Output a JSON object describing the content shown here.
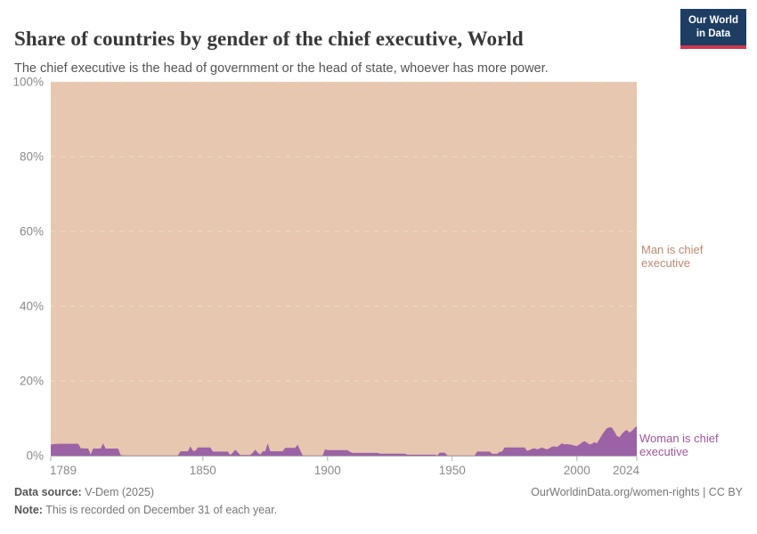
{
  "header": {
    "title": "Share of countries by gender of the chief executive, World",
    "subtitle": "The chief executive is the head of government or the head of state, whoever has more power.",
    "logo_line1": "Our World",
    "logo_line2": "in Data"
  },
  "colors": {
    "man_area": "#e7c7af",
    "woman_area": "#9c62a6",
    "man_label": "#bd8a6f",
    "woman_label": "#a2559c",
    "axis_text": "#8a8a8a",
    "axis_line": "#b0b0b0",
    "gridline": "#e9e2da",
    "logo_bg": "#1d3d63",
    "logo_bar": "#d0374d"
  },
  "chart_data": {
    "type": "area",
    "stacked": true,
    "normalized_to_100_percent": true,
    "title": "Share of countries by gender of the chief executive, World",
    "xlabel": "",
    "ylabel": "",
    "xlim": [
      1789,
      2024
    ],
    "ylim": [
      0,
      100
    ],
    "x_ticks": [
      "1789",
      "1850",
      "1900",
      "1950",
      "2000",
      "2024"
    ],
    "y_ticks": [
      "0%",
      "20%",
      "40%",
      "60%",
      "80%",
      "100%"
    ],
    "grid": "horizontal dashed",
    "legend_position": "right-edge annotations",
    "series": [
      {
        "name": "Man is chief executive",
        "color": "#e7c7af",
        "values_rule": "100 minus 'Woman is chief executive' share (areas stack to 100%)"
      },
      {
        "name": "Woman is chief executive",
        "color": "#9c62a6",
        "points": [
          [
            1789,
            3.0
          ],
          [
            1792,
            3.2
          ],
          [
            1800,
            3.2
          ],
          [
            1801,
            2.0
          ],
          [
            1804,
            1.9
          ],
          [
            1805,
            0.3
          ],
          [
            1806,
            1.9
          ],
          [
            1809,
            1.9
          ],
          [
            1810,
            3.3
          ],
          [
            1811,
            1.9
          ],
          [
            1816,
            1.9
          ],
          [
            1817,
            0.2
          ],
          [
            1818,
            0.05
          ],
          [
            1840,
            0.05
          ],
          [
            1841,
            1.2
          ],
          [
            1844,
            1.2
          ],
          [
            1845,
            2.5
          ],
          [
            1846,
            1.3
          ],
          [
            1847,
            1.3
          ],
          [
            1848,
            2.2
          ],
          [
            1853,
            2.2
          ],
          [
            1854,
            1.1
          ],
          [
            1860,
            1.1
          ],
          [
            1861,
            0.2
          ],
          [
            1862,
            0.8
          ],
          [
            1863,
            1.6
          ],
          [
            1865,
            0.2
          ],
          [
            1869,
            0.2
          ],
          [
            1870,
            0.8
          ],
          [
            1871,
            1.6
          ],
          [
            1872,
            0.8
          ],
          [
            1873,
            0.3
          ],
          [
            1874,
            1.2
          ],
          [
            1875,
            1.2
          ],
          [
            1876,
            3.3
          ],
          [
            1877,
            1.2
          ],
          [
            1882,
            1.2
          ],
          [
            1883,
            2.1
          ],
          [
            1887,
            2.1
          ],
          [
            1888,
            2.9
          ],
          [
            1889,
            1.5
          ],
          [
            1890,
            0.1
          ],
          [
            1891,
            0.05
          ],
          [
            1898,
            0.05
          ],
          [
            1899,
            1.7
          ],
          [
            1900,
            1.5
          ],
          [
            1908,
            1.5
          ],
          [
            1909,
            1.0
          ],
          [
            1910,
            0.75
          ],
          [
            1920,
            0.75
          ],
          [
            1921,
            0.55
          ],
          [
            1931,
            0.55
          ],
          [
            1932,
            0.25
          ],
          [
            1943,
            0.25
          ],
          [
            1944,
            0.05
          ],
          [
            1945,
            0.8
          ],
          [
            1947,
            0.8
          ],
          [
            1948,
            0.1
          ],
          [
            1949,
            0.05
          ],
          [
            1959,
            0.05
          ],
          [
            1960,
            1.1
          ],
          [
            1965,
            1.1
          ],
          [
            1966,
            0.5
          ],
          [
            1968,
            0.5
          ],
          [
            1969,
            1.0
          ],
          [
            1970,
            1.1
          ],
          [
            1971,
            2.2
          ],
          [
            1979,
            2.2
          ],
          [
            1980,
            1.3
          ],
          [
            1981,
            1.5
          ],
          [
            1982,
            1.8
          ],
          [
            1983,
            2.0
          ],
          [
            1984,
            1.7
          ],
          [
            1985,
            1.9
          ],
          [
            1986,
            2.2
          ],
          [
            1987,
            1.9
          ],
          [
            1988,
            1.7
          ],
          [
            1989,
            2.0
          ],
          [
            1990,
            2.4
          ],
          [
            1991,
            2.5
          ],
          [
            1992,
            2.3
          ],
          [
            1993,
            2.8
          ],
          [
            1994,
            3.3
          ],
          [
            1995,
            3.0
          ],
          [
            1996,
            3.1
          ],
          [
            1997,
            3.0
          ],
          [
            1998,
            2.9
          ],
          [
            1999,
            2.7
          ],
          [
            2000,
            2.6
          ],
          [
            2001,
            3.0
          ],
          [
            2002,
            3.5
          ],
          [
            2003,
            3.9
          ],
          [
            2004,
            3.5
          ],
          [
            2005,
            3.0
          ],
          [
            2006,
            3.2
          ],
          [
            2007,
            3.6
          ],
          [
            2008,
            3.3
          ],
          [
            2009,
            4.4
          ],
          [
            2010,
            5.5
          ],
          [
            2011,
            6.5
          ],
          [
            2012,
            7.3
          ],
          [
            2013,
            7.6
          ],
          [
            2014,
            7.5
          ],
          [
            2015,
            6.5
          ],
          [
            2016,
            5.3
          ],
          [
            2017,
            4.9
          ],
          [
            2018,
            5.8
          ],
          [
            2019,
            6.5
          ],
          [
            2020,
            6.9
          ],
          [
            2021,
            6.2
          ],
          [
            2022,
            6.6
          ],
          [
            2023,
            7.3
          ],
          [
            2024,
            7.9
          ]
        ]
      }
    ]
  },
  "footer": {
    "source_label": "Data source:",
    "source_value": " V-Dem (2025)",
    "note_label": "Note:",
    "note_value": " This is recorded on December 31 of each year.",
    "right_text": "OurWorldinData.org/women-rights | CC BY"
  }
}
